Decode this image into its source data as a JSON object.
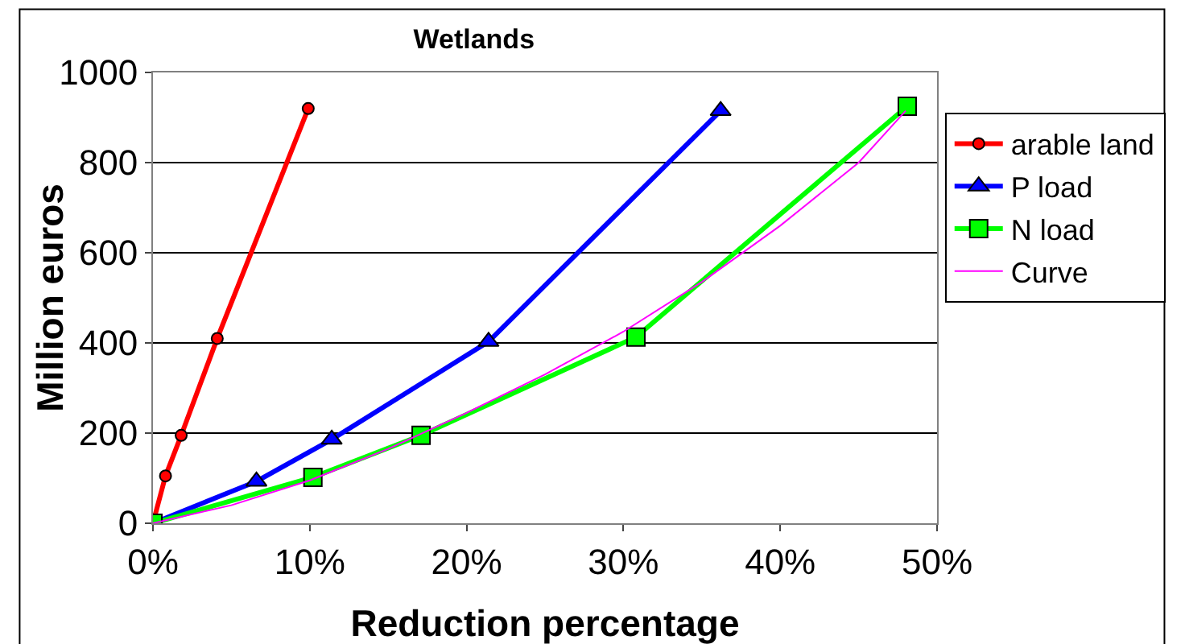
{
  "chart_data": {
    "type": "line",
    "title": "Wetlands",
    "xlabel": "Reduction percentage",
    "ylabel": "Million euros",
    "xlim": [
      0,
      50
    ],
    "xticks": [
      {
        "value": 0,
        "label": "0%"
      },
      {
        "value": 10,
        "label": "10%"
      },
      {
        "value": 20,
        "label": "20%"
      },
      {
        "value": 30,
        "label": "30%"
      },
      {
        "value": 40,
        "label": "40%"
      },
      {
        "value": 50,
        "label": "50%"
      }
    ],
    "ylim": [
      0,
      1000
    ],
    "yticks": [
      0,
      200,
      400,
      600,
      800,
      1000
    ],
    "grid": "y",
    "legend": "right",
    "series": [
      {
        "name": "arable land",
        "color": "#ff0000",
        "marker": "circle",
        "x": [
          0,
          0.8,
          1.8,
          4.1,
          9.9
        ],
        "values": [
          0,
          105,
          195,
          410,
          920
        ]
      },
      {
        "name": "P load",
        "color": "#0000ff",
        "marker": "triangle",
        "x": [
          0,
          6.6,
          11.4,
          21.4,
          36.2
        ],
        "values": [
          0,
          93,
          186,
          403,
          915
        ]
      },
      {
        "name": "N load",
        "color": "#00ff00",
        "marker": "square",
        "x": [
          0,
          10.2,
          17.1,
          30.8,
          48.1
        ],
        "values": [
          0,
          102,
          195,
          413,
          925
        ]
      },
      {
        "name": "Curve",
        "color": "#ff00ff",
        "marker": "none",
        "x": [
          0,
          5,
          10,
          15,
          20,
          25,
          30,
          35,
          40,
          45,
          48
        ],
        "values": [
          0,
          40,
          95,
          165,
          245,
          330,
          425,
          535,
          660,
          800,
          915
        ]
      }
    ]
  }
}
